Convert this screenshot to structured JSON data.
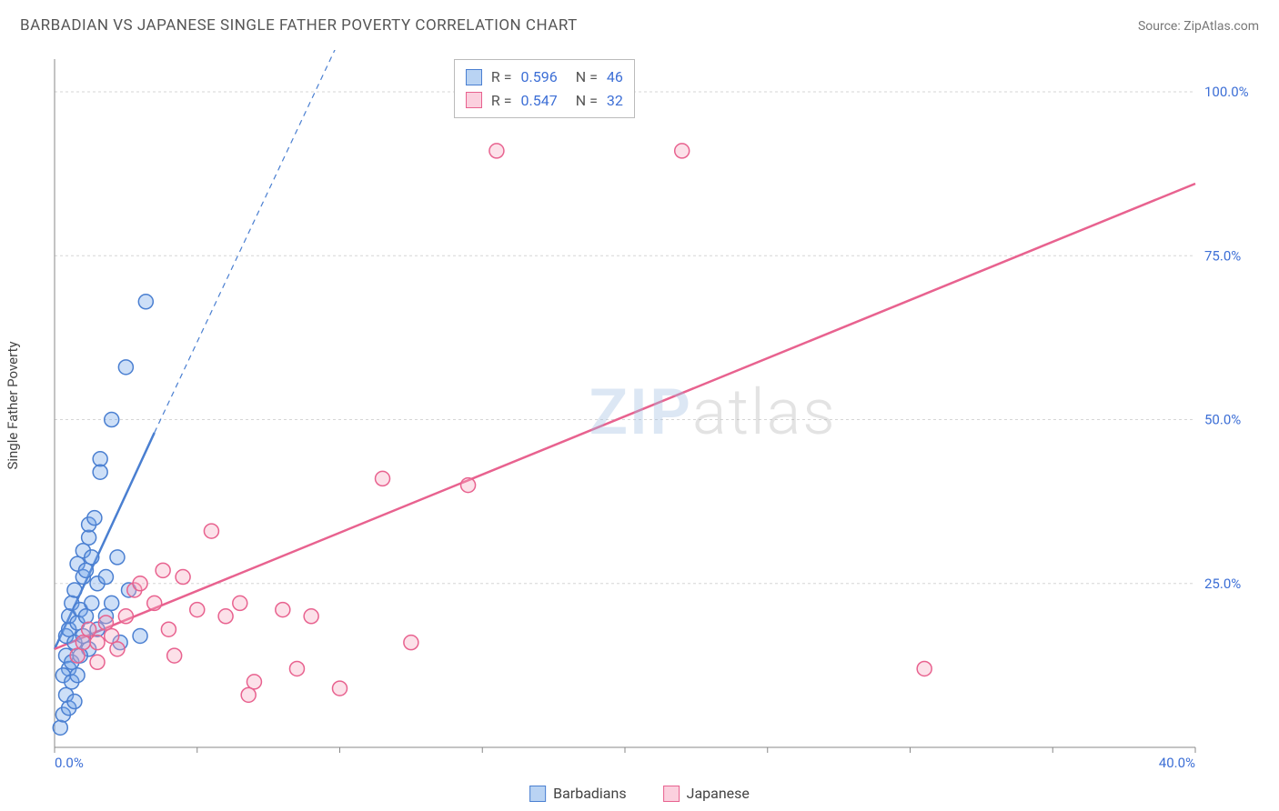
{
  "title": "BARBADIAN VS JAPANESE SINGLE FATHER POVERTY CORRELATION CHART",
  "source_label": "Source: ",
  "source_name": "ZipAtlas.com",
  "ylabel": "Single Father Poverty",
  "watermark_zip": "ZIP",
  "watermark_atlas": "atlas",
  "chart": {
    "type": "scatter",
    "background_color": "#ffffff",
    "grid_color": "#d5d5d5",
    "axis_color": "#888888",
    "label_color": "#3d6fd6",
    "xlim": [
      0,
      40
    ],
    "ylim": [
      0,
      105
    ],
    "x_ticks": [
      0,
      5,
      10,
      15,
      20,
      25,
      30,
      35,
      40
    ],
    "x_tick_labels": [
      "0.0%",
      "",
      "",
      "",
      "",
      "",
      "",
      "",
      "40.0%"
    ],
    "y_ticks": [
      25,
      50,
      75,
      100
    ],
    "y_tick_labels": [
      "25.0%",
      "50.0%",
      "75.0%",
      "100.0%"
    ],
    "marker_radius": 8,
    "marker_fill_opacity": 0.35,
    "marker_stroke_width": 1.5,
    "series": [
      {
        "name": "Barbadians",
        "color_fill": "#6fa3e8",
        "color_stroke": "#4a7fd1",
        "R": "0.596",
        "N": "46",
        "regression": {
          "x1": 0,
          "y1": 15,
          "x2": 3.5,
          "y2": 48,
          "extend_x2": 10,
          "extend_y2": 108,
          "width": 2.5
        },
        "points": [
          [
            0.2,
            3
          ],
          [
            0.3,
            5
          ],
          [
            0.4,
            14
          ],
          [
            0.4,
            17
          ],
          [
            0.5,
            18
          ],
          [
            0.5,
            12
          ],
          [
            0.5,
            20
          ],
          [
            0.6,
            22
          ],
          [
            0.6,
            13
          ],
          [
            0.7,
            24
          ],
          [
            0.7,
            16
          ],
          [
            0.8,
            28
          ],
          [
            0.8,
            19
          ],
          [
            0.9,
            21
          ],
          [
            1.0,
            26
          ],
          [
            1.0,
            30
          ],
          [
            1.1,
            27
          ],
          [
            1.2,
            15
          ],
          [
            1.2,
            32
          ],
          [
            1.2,
            34
          ],
          [
            1.3,
            29
          ],
          [
            1.4,
            35
          ],
          [
            1.5,
            25
          ],
          [
            1.6,
            44
          ],
          [
            1.6,
            42
          ],
          [
            1.8,
            26
          ],
          [
            2.0,
            50
          ],
          [
            2.2,
            29
          ],
          [
            2.3,
            16
          ],
          [
            2.5,
            58
          ],
          [
            2.6,
            24
          ],
          [
            3.0,
            17
          ],
          [
            3.2,
            68
          ],
          [
            0.3,
            11
          ],
          [
            0.4,
            8
          ],
          [
            0.6,
            10
          ],
          [
            0.8,
            11
          ],
          [
            0.9,
            14
          ],
          [
            1.0,
            17
          ],
          [
            1.1,
            20
          ],
          [
            1.3,
            22
          ],
          [
            1.5,
            18
          ],
          [
            0.5,
            6
          ],
          [
            0.7,
            7
          ],
          [
            1.8,
            20
          ],
          [
            2.0,
            22
          ]
        ]
      },
      {
        "name": "Japanese",
        "color_fill": "#f7a8c0",
        "color_stroke": "#e8628f",
        "R": "0.547",
        "N": "32",
        "regression": {
          "x1": 0,
          "y1": 15,
          "x2": 40,
          "y2": 86,
          "width": 2.5
        },
        "points": [
          [
            0.8,
            14
          ],
          [
            1.0,
            16
          ],
          [
            1.2,
            18
          ],
          [
            1.5,
            16
          ],
          [
            1.8,
            19
          ],
          [
            2.0,
            17
          ],
          [
            2.5,
            20
          ],
          [
            2.8,
            24
          ],
          [
            3.0,
            25
          ],
          [
            3.5,
            22
          ],
          [
            3.8,
            27
          ],
          [
            4.0,
            18
          ],
          [
            4.5,
            26
          ],
          [
            5.0,
            21
          ],
          [
            5.5,
            33
          ],
          [
            6.0,
            20
          ],
          [
            6.5,
            22
          ],
          [
            7.0,
            10
          ],
          [
            8.0,
            21
          ],
          [
            8.5,
            12
          ],
          [
            9.0,
            20
          ],
          [
            10.0,
            9
          ],
          [
            11.5,
            41
          ],
          [
            12.5,
            16
          ],
          [
            14.5,
            40
          ],
          [
            15.5,
            91
          ],
          [
            22.0,
            91
          ],
          [
            30.5,
            12
          ],
          [
            1.5,
            13
          ],
          [
            2.2,
            15
          ],
          [
            4.2,
            14
          ],
          [
            6.8,
            8
          ]
        ]
      }
    ],
    "stats_box": {
      "rows": [
        {
          "swatch_fill": "#b9d3f3",
          "swatch_stroke": "#4a7fd1",
          "R": "0.596",
          "N": "46"
        },
        {
          "swatch_fill": "#fbd0de",
          "swatch_stroke": "#e8628f",
          "R": "0.547",
          "N": "32"
        }
      ]
    },
    "bottom_legend": [
      {
        "label": "Barbadians",
        "swatch_fill": "#b9d3f3",
        "swatch_stroke": "#4a7fd1"
      },
      {
        "label": "Japanese",
        "swatch_fill": "#fbd0de",
        "swatch_stroke": "#e8628f"
      }
    ]
  }
}
